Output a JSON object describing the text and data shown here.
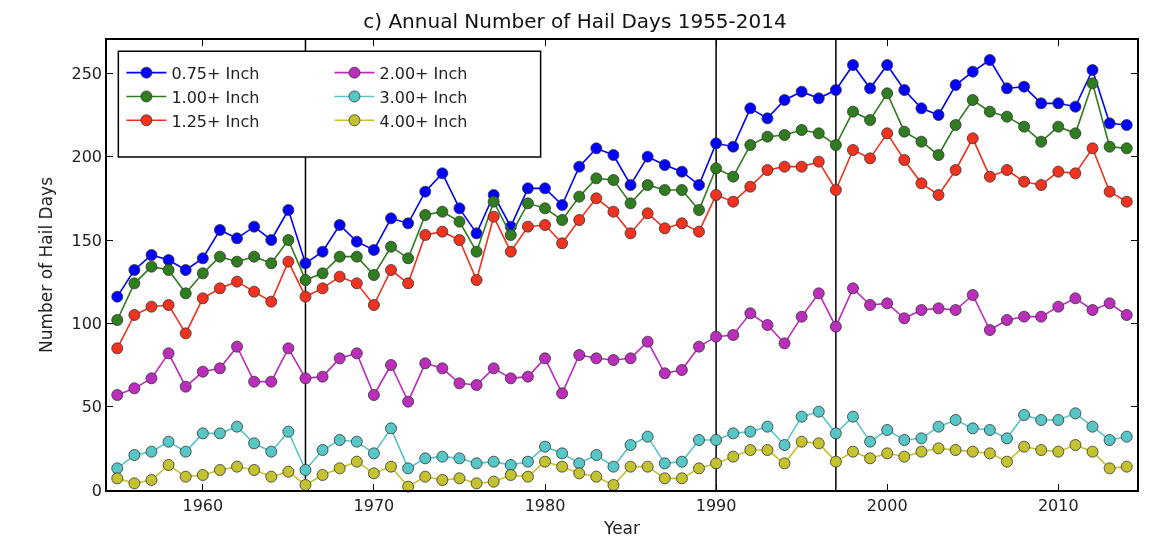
{
  "chart_data": {
    "type": "line",
    "title": "c) Annual Number of Hail Days 1955-2014",
    "xlabel": "Year",
    "ylabel": "Number of Hail Days",
    "x": [
      1955,
      1956,
      1957,
      1958,
      1959,
      1960,
      1961,
      1962,
      1963,
      1964,
      1965,
      1966,
      1967,
      1968,
      1969,
      1970,
      1971,
      1972,
      1973,
      1974,
      1975,
      1976,
      1977,
      1978,
      1979,
      1980,
      1981,
      1982,
      1983,
      1984,
      1985,
      1986,
      1987,
      1988,
      1989,
      1990,
      1991,
      1992,
      1993,
      1994,
      1995,
      1996,
      1997,
      1998,
      1999,
      2000,
      2001,
      2002,
      2003,
      2004,
      2005,
      2006,
      2007,
      2008,
      2009,
      2010,
      2011,
      2012,
      2013,
      2014
    ],
    "series": [
      {
        "name": "0.75+ Inch",
        "color": "#0000ff",
        "values": [
          116,
          132,
          141,
          138,
          132,
          139,
          156,
          151,
          158,
          150,
          168,
          136,
          143,
          159,
          149,
          144,
          163,
          160,
          179,
          190,
          169,
          154,
          177,
          158,
          181,
          181,
          171,
          194,
          205,
          201,
          183,
          200,
          195,
          191,
          183,
          208,
          206,
          229,
          223,
          234,
          239,
          235,
          240,
          255,
          241,
          255,
          240,
          229,
          225,
          243,
          251,
          258,
          241,
          242,
          232,
          232,
          230,
          252,
          220,
          219
        ]
      },
      {
        "name": "1.00+ Inch",
        "color": "#2e7d1e",
        "values": [
          102,
          124,
          134,
          132,
          118,
          130,
          140,
          137,
          140,
          136,
          150,
          126,
          130,
          140,
          140,
          129,
          146,
          139,
          165,
          167,
          161,
          143,
          173,
          153,
          172,
          169,
          162,
          176,
          187,
          186,
          172,
          183,
          180,
          180,
          168,
          193,
          188,
          207,
          212,
          213,
          216,
          214,
          207,
          227,
          222,
          238,
          215,
          209,
          201,
          219,
          234,
          227,
          224,
          218,
          209,
          218,
          214,
          244,
          206,
          205
        ]
      },
      {
        "name": "1.25+ Inch",
        "color": "#f0321e",
        "values": [
          85,
          105,
          110,
          111,
          94,
          115,
          121,
          125,
          119,
          113,
          137,
          116,
          121,
          128,
          124,
          111,
          132,
          124,
          153,
          155,
          150,
          126,
          164,
          143,
          158,
          159,
          148,
          162,
          175,
          167,
          154,
          166,
          157,
          160,
          155,
          177,
          173,
          182,
          192,
          194,
          194,
          197,
          180,
          204,
          199,
          214,
          198,
          184,
          177,
          192,
          211,
          188,
          192,
          185,
          183,
          191,
          190,
          205,
          179,
          173
        ]
      },
      {
        "name": "2.00+ Inch",
        "color": "#bb2dbb",
        "values": [
          57,
          61,
          67,
          82,
          62,
          71,
          73,
          86,
          65,
          65,
          85,
          67,
          68,
          79,
          82,
          57,
          75,
          53,
          76,
          73,
          64,
          63,
          73,
          67,
          68,
          79,
          58,
          81,
          79,
          78,
          79,
          89,
          70,
          72,
          86,
          92,
          93,
          106,
          99,
          88,
          104,
          118,
          98,
          121,
          111,
          112,
          103,
          108,
          109,
          108,
          117,
          96,
          102,
          104,
          104,
          110,
          115,
          108,
          112,
          105
        ]
      },
      {
        "name": "3.00+ Inch",
        "color": "#57c6c6",
        "values": [
          13,
          21,
          23,
          29,
          23,
          34,
          34,
          38,
          28,
          23,
          35,
          12,
          24,
          30,
          29,
          22,
          37,
          13,
          19,
          20,
          19,
          16,
          17,
          15,
          17,
          26,
          22,
          16,
          21,
          14,
          27,
          32,
          16,
          17,
          30,
          30,
          34,
          35,
          38,
          27,
          44,
          47,
          34,
          44,
          29,
          36,
          30,
          31,
          38,
          42,
          37,
          36,
          31,
          45,
          42,
          42,
          46,
          38,
          30,
          32
        ]
      },
      {
        "name": "4.00+ Inch",
        "color": "#c4c22e",
        "values": [
          7,
          4,
          6,
          15,
          8,
          9,
          12,
          14,
          12,
          8,
          11,
          3,
          9,
          13,
          17,
          10,
          14,
          2,
          8,
          6,
          7,
          4,
          5,
          9,
          8,
          17,
          14,
          10,
          8,
          3,
          14,
          14,
          7,
          7,
          13,
          16,
          20,
          24,
          24,
          16,
          29,
          28,
          17,
          23,
          19,
          22,
          20,
          23,
          25,
          24,
          23,
          22,
          17,
          26,
          24,
          23,
          27,
          23,
          13,
          14
        ]
      }
    ],
    "xlim": [
      1954.4,
      2014.6
    ],
    "ylim": [
      0,
      270
    ],
    "xticks": [
      1960,
      1970,
      1980,
      1990,
      2000,
      2010
    ],
    "yticks": [
      0,
      50,
      100,
      150,
      200,
      250
    ],
    "ref_lines": [
      {
        "axis": "x",
        "value": 1966,
        "color": "#000000"
      },
      {
        "axis": "x",
        "value": 1990,
        "color": "#000000"
      },
      {
        "axis": "x",
        "value": 1997,
        "color": "#000000"
      }
    ],
    "grid": false,
    "legend": "top left",
    "marker": "circle",
    "line_style": "solid"
  }
}
